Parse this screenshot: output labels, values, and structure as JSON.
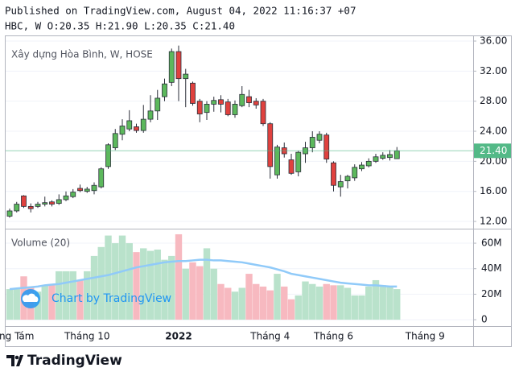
{
  "header": {
    "published": "Published on TradingView.com, August 04, 2022 11:16:37 +07",
    "ohlc": "HBC, W O:20.35 H:21.90 L:20.35 C:21.40"
  },
  "watermark": "Chart by TradingView",
  "footer": "TradingView",
  "chart_data": {
    "type": "candlestick",
    "legend": "Xây dựng Hòa Bình, W, HOSE",
    "up_color": "#5cb85c",
    "down_color": "#e0413e",
    "categories": [
      null,
      "ng Tám",
      null,
      null,
      null,
      null,
      null,
      null,
      null,
      null,
      null,
      "Tháng 10",
      null,
      null,
      null,
      null,
      null,
      null,
      null,
      null,
      null,
      null,
      null,
      null,
      "2022",
      null,
      null,
      null,
      null,
      null,
      null,
      null,
      null,
      null,
      null,
      null,
      null,
      "Tháng 4",
      null,
      null,
      null,
      null,
      null,
      null,
      null,
      null,
      "Tháng 6",
      null,
      null,
      null,
      null,
      null,
      null,
      null,
      null,
      null,
      null,
      null,
      null,
      "Tháng 9",
      null,
      null,
      null,
      null,
      null,
      null
    ],
    "open": [
      12.7,
      13.4,
      15.4,
      14.0,
      14.0,
      14.3,
      14.6,
      14.4,
      14.9,
      15.3,
      16.4,
      16.0,
      16.1,
      16.6,
      19.3,
      21.8,
      23.6,
      24.3,
      24.6,
      24.1,
      25.6,
      26.7,
      28.6,
      30.5,
      34.6,
      31.0,
      30.4,
      28.0,
      26.5,
      27.6,
      28.2,
      27.9,
      26.2,
      27.4,
      28.6,
      28.0,
      28.0,
      25.0,
      18.2,
      21.8,
      20.2,
      18.6,
      21.0,
      21.8,
      22.8,
      23.5,
      19.8,
      16.6,
      17.4,
      17.8,
      19.0,
      19.4,
      20.0,
      20.4,
      20.5,
      20.35,
      null,
      null,
      null,
      null,
      null,
      null,
      null,
      null,
      null,
      null
    ],
    "high": [
      13.7,
      14.6,
      15.5,
      14.4,
      14.6,
      15.3,
      14.8,
      15.6,
      16.0,
      16.3,
      16.9,
      16.6,
      17.2,
      19.2,
      22.4,
      24.3,
      25.6,
      26.8,
      25.0,
      27.5,
      28.8,
      29.5,
      31.0,
      35.0,
      35.4,
      32.3,
      30.6,
      28.3,
      28.0,
      28.6,
      28.8,
      28.3,
      28.1,
      30.0,
      29.5,
      28.4,
      28.3,
      25.2,
      22.2,
      22.5,
      21.0,
      21.4,
      22.6,
      24.0,
      24.0,
      23.8,
      20.0,
      18.2,
      18.2,
      19.6,
      19.9,
      20.4,
      21.0,
      21.2,
      21.5,
      21.9,
      null,
      null,
      null,
      null,
      null,
      null,
      null,
      null,
      null,
      null
    ],
    "low": [
      12.5,
      13.2,
      13.8,
      13.2,
      13.8,
      14.0,
      14.0,
      14.2,
      14.7,
      15.1,
      15.9,
      15.8,
      15.6,
      16.4,
      19.0,
      21.5,
      22.8,
      24.0,
      23.8,
      23.8,
      25.2,
      25.5,
      28.0,
      30.0,
      28.0,
      27.2,
      27.4,
      25.2,
      25.5,
      26.6,
      26.5,
      26.0,
      25.8,
      27.2,
      27.2,
      27.0,
      24.7,
      17.7,
      17.7,
      20.5,
      18.2,
      18.0,
      19.8,
      21.2,
      22.4,
      19.8,
      16.0,
      15.3,
      16.4,
      17.4,
      18.7,
      19.2,
      19.8,
      20.2,
      20.1,
      20.35,
      null,
      null,
      null,
      null,
      null,
      null,
      null,
      null,
      null,
      null
    ],
    "close": [
      13.4,
      14.3,
      14.0,
      13.7,
      14.3,
      14.5,
      14.3,
      14.9,
      15.4,
      15.9,
      16.1,
      16.3,
      16.8,
      19.0,
      22.2,
      23.7,
      24.7,
      25.4,
      24.1,
      25.6,
      26.7,
      28.4,
      30.3,
      34.6,
      31.0,
      31.6,
      27.7,
      26.3,
      27.6,
      28.1,
      27.6,
      26.2,
      27.6,
      28.9,
      27.8,
      27.5,
      25.0,
      19.3,
      21.9,
      21.0,
      18.4,
      21.2,
      21.8,
      23.2,
      23.6,
      20.3,
      16.8,
      17.3,
      18.0,
      19.2,
      19.5,
      20.0,
      20.6,
      20.8,
      20.9,
      21.4,
      null,
      null,
      null,
      null,
      null,
      null,
      null,
      null,
      null,
      null
    ],
    "ylim": [
      11.04,
      36.75
    ],
    "yticks": [
      {
        "value": 12,
        "label": "12.00"
      },
      {
        "value": 16,
        "label": "16.00"
      },
      {
        "value": 20,
        "label": "20.00"
      },
      {
        "value": 24,
        "label": "24.00"
      },
      {
        "value": 28,
        "label": "28.00"
      },
      {
        "value": 32,
        "label": "32.00"
      },
      {
        "value": 36,
        "label": "36.00"
      }
    ],
    "last_price": {
      "value": 21.4,
      "label": "21.40"
    },
    "last_color": "#53b987",
    "volume": {
      "label": "Volume (20)",
      "up_color": "#b9e2cb",
      "down_color": "#f7b9c0",
      "ma_color": "#90caf9",
      "values": [
        24000000,
        24000000,
        34000000,
        26000000,
        22000000,
        27000000,
        28000000,
        38000000,
        38000000,
        38000000,
        31000000,
        38000000,
        50000000,
        57000000,
        66000000,
        60000000,
        66000000,
        60000000,
        53000000,
        56000000,
        54000000,
        55000000,
        47000000,
        50000000,
        67000000,
        40000000,
        45000000,
        42000000,
        56000000,
        40000000,
        28000000,
        25000000,
        22000000,
        25000000,
        36000000,
        28000000,
        26000000,
        23000000,
        36000000,
        26000000,
        16000000,
        19000000,
        30000000,
        28000000,
        26000000,
        28000000,
        27000000,
        27000000,
        25000000,
        19000000,
        19000000,
        26000000,
        31000000,
        27000000,
        26000000,
        24000000,
        null,
        null,
        null,
        null,
        null,
        null,
        null,
        null,
        null,
        null
      ],
      "ma": [
        24000000,
        24500000,
        25000000,
        25500000,
        26000000,
        27000000,
        27500000,
        28000000,
        29000000,
        30000000,
        31000000,
        32000000,
        33000000,
        34000000,
        35000000,
        36500000,
        38000000,
        39500000,
        41000000,
        42000000,
        43000000,
        44000000,
        45000000,
        45500000,
        46000000,
        46000000,
        46500000,
        47000000,
        47000000,
        46500000,
        46500000,
        46000000,
        45500000,
        45000000,
        44000000,
        43000000,
        42000000,
        41000000,
        39500000,
        38000000,
        36000000,
        35000000,
        34000000,
        33000000,
        32000000,
        31000000,
        30000000,
        29000000,
        28500000,
        28000000,
        27500000,
        27000000,
        27000000,
        26500000,
        26000000,
        26000000,
        null,
        null,
        null,
        null,
        null,
        null,
        null,
        null,
        null,
        null
      ],
      "ylim": [
        -5000000,
        71400000
      ],
      "yticks": [
        0,
        {
          "value": 20000000,
          "label": "20M"
        },
        {
          "value": 40000000,
          "label": "40M"
        },
        {
          "value": 60000000,
          "label": "60M"
        }
      ]
    }
  }
}
